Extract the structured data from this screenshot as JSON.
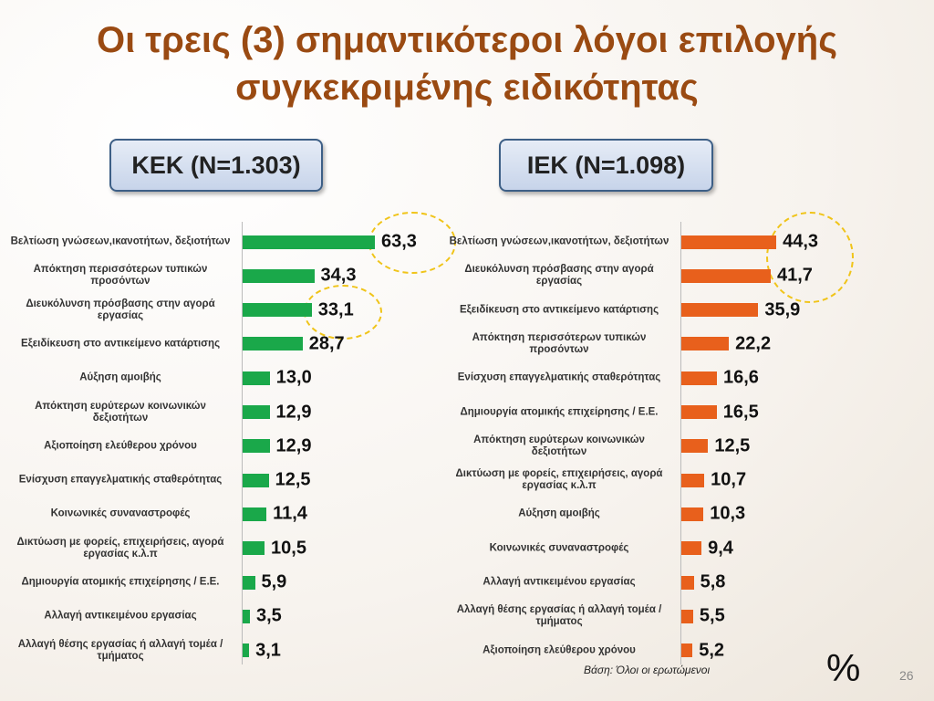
{
  "title": "Οι τρεις (3) σημαντικότεροι λόγοι επιλογής συγκεκριμένης ειδικότητας",
  "note": "Βάση: Όλοι οι ερωτώμενοι",
  "unit": "%",
  "page_number": "26",
  "chart_data": [
    {
      "type": "bar",
      "orientation": "horizontal",
      "title": "ΚΕΚ (N=1.303)",
      "color": "#1aa84a",
      "categories": [
        "Βελτίωση γνώσεων,ικανοτήτων, δεξιοτήτων",
        "Απόκτηση περισσότερων τυπικών προσόντων",
        "Διευκόλυνση πρόσβασης στην αγορά εργασίας",
        "Εξειδίκευση στο αντικείμενο κατάρτισης",
        "Αύξηση αμοιβής",
        "Απόκτηση ευρύτερων κοινωνικών δεξιοτήτων",
        "Αξιοποίηση ελεύθερου χρόνου",
        "Ενίσχυση επαγγελματικής σταθερότητας",
        "Κοινωνικές συναναστροφές",
        "Δικτύωση με φορείς, επιχειρήσεις, αγορά εργασίας κ.λ.π",
        "Δημιουργία ατομικής επιχείρησης / Ε.Ε.",
        "Αλλαγή αντικειμένου εργασίας",
        "Αλλαγή θέσης εργασίας ή αλλαγή τομέα /τμήματος"
      ],
      "values": [
        63.3,
        34.3,
        33.1,
        28.7,
        13.0,
        12.9,
        12.9,
        12.5,
        11.4,
        10.5,
        5.9,
        3.5,
        3.1
      ],
      "value_labels": [
        "63,3",
        "34,3",
        "33,1",
        "28,7",
        "13,0",
        "12,9",
        "12,9",
        "12,5",
        "11,4",
        "10,5",
        "5,9",
        "3,5",
        "3,1"
      ]
    },
    {
      "type": "bar",
      "orientation": "horizontal",
      "title": "ΙΕΚ (N=1.098)",
      "color": "#e8601c",
      "categories": [
        "Βελτίωση γνώσεων,ικανοτήτων, δεξιοτήτων",
        "Διευκόλυνση πρόσβασης στην αγορά εργασίας",
        "Εξειδίκευση στο αντικείμενο κατάρτισης",
        "Απόκτηση περισσότερων τυπικών προσόντων",
        "Ενίσχυση επαγγελματικής σταθερότητας",
        "Δημιουργία ατομικής επιχείρησης / Ε.Ε.",
        "Απόκτηση ευρύτερων κοινωνικών δεξιοτήτων",
        "Δικτύωση με φορείς, επιχειρήσεις, αγορά εργασίας κ.λ.π",
        "Αύξηση αμοιβής",
        "Κοινωνικές συναναστροφές",
        "Αλλαγή αντικειμένου εργασίας",
        "Αλλαγή θέσης εργασίας ή αλλαγή τομέα /τμήματος",
        "Αξιοποίηση ελεύθερου χρόνου"
      ],
      "values": [
        44.3,
        41.7,
        35.9,
        22.2,
        16.6,
        16.5,
        12.5,
        10.7,
        10.3,
        9.4,
        5.8,
        5.5,
        5.2
      ],
      "value_labels": [
        "44,3",
        "41,7",
        "35,9",
        "22,2",
        "16,6",
        "16,5",
        "12,5",
        "10,7",
        "10,3",
        "9,4",
        "5,8",
        "5,5",
        "5,2"
      ]
    }
  ]
}
